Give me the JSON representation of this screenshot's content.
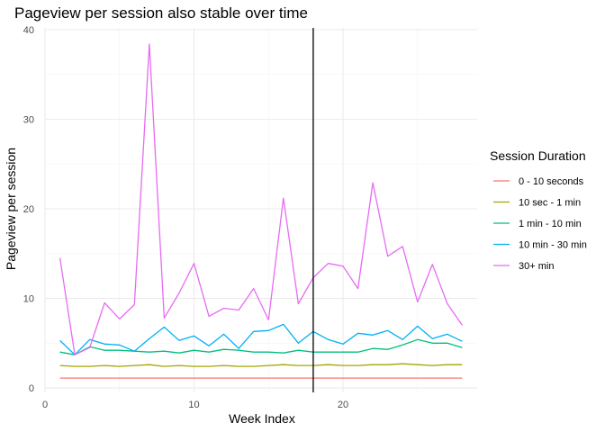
{
  "chart_data": {
    "type": "line",
    "title": "Pageview per session also stable over time",
    "xlabel": "Week Index",
    "ylabel": "Pageview per session",
    "xlim": [
      0,
      29
    ],
    "ylim": [
      -0.5,
      40.2
    ],
    "x_ticks": [
      0,
      10,
      20
    ],
    "y_ticks": [
      0,
      10,
      20,
      30,
      40
    ],
    "grid": true,
    "vline_x": 18,
    "vline_color": "#000000",
    "legend_title": "Session Duration",
    "legend_position": "right",
    "x": [
      1,
      2,
      3,
      4,
      5,
      6,
      7,
      8,
      9,
      10,
      11,
      12,
      13,
      14,
      15,
      16,
      17,
      18,
      19,
      20,
      21,
      22,
      23,
      24,
      25,
      26,
      27,
      28
    ],
    "series": [
      {
        "name": "0 - 10 seconds",
        "color": "#F8766D",
        "values": [
          1.1,
          1.1,
          1.1,
          1.1,
          1.1,
          1.1,
          1.1,
          1.1,
          1.1,
          1.1,
          1.1,
          1.1,
          1.1,
          1.1,
          1.1,
          1.1,
          1.1,
          1.1,
          1.1,
          1.1,
          1.1,
          1.1,
          1.1,
          1.1,
          1.1,
          1.1,
          1.1,
          1.1
        ]
      },
      {
        "name": "10 sec - 1 min",
        "color": "#A3A500",
        "values": [
          2.5,
          2.4,
          2.4,
          2.5,
          2.4,
          2.5,
          2.6,
          2.4,
          2.5,
          2.4,
          2.4,
          2.5,
          2.4,
          2.4,
          2.5,
          2.6,
          2.5,
          2.5,
          2.6,
          2.5,
          2.5,
          2.6,
          2.6,
          2.7,
          2.6,
          2.5,
          2.6,
          2.6
        ]
      },
      {
        "name": "1 min - 10 min",
        "color": "#00BF7D",
        "values": [
          4.0,
          3.7,
          4.6,
          4.2,
          4.2,
          4.1,
          4.0,
          4.1,
          3.9,
          4.2,
          4.0,
          4.3,
          4.2,
          4.0,
          4.0,
          3.9,
          4.2,
          4.0,
          4.0,
          4.0,
          4.0,
          4.4,
          4.3,
          4.8,
          5.4,
          5.0,
          5.0,
          4.5
        ]
      },
      {
        "name": "10 min - 30 min",
        "color": "#00B0F6",
        "values": [
          5.3,
          3.7,
          5.4,
          4.9,
          4.8,
          4.1,
          5.5,
          6.8,
          5.3,
          5.8,
          4.7,
          6.0,
          4.4,
          6.3,
          6.4,
          7.1,
          5.0,
          6.3,
          5.4,
          4.9,
          6.1,
          5.9,
          6.4,
          5.4,
          6.9,
          5.5,
          6.0,
          5.2
        ]
      },
      {
        "name": "30+ min",
        "color": "#E76BF3",
        "values": [
          14.5,
          3.7,
          4.5,
          9.5,
          7.7,
          9.3,
          38.4,
          7.8,
          10.6,
          13.9,
          8.0,
          8.9,
          8.7,
          11.1,
          7.6,
          21.2,
          9.4,
          12.3,
          13.9,
          13.6,
          11.1,
          22.9,
          14.7,
          15.8,
          9.6,
          13.8,
          9.4,
          7.0
        ]
      }
    ]
  }
}
